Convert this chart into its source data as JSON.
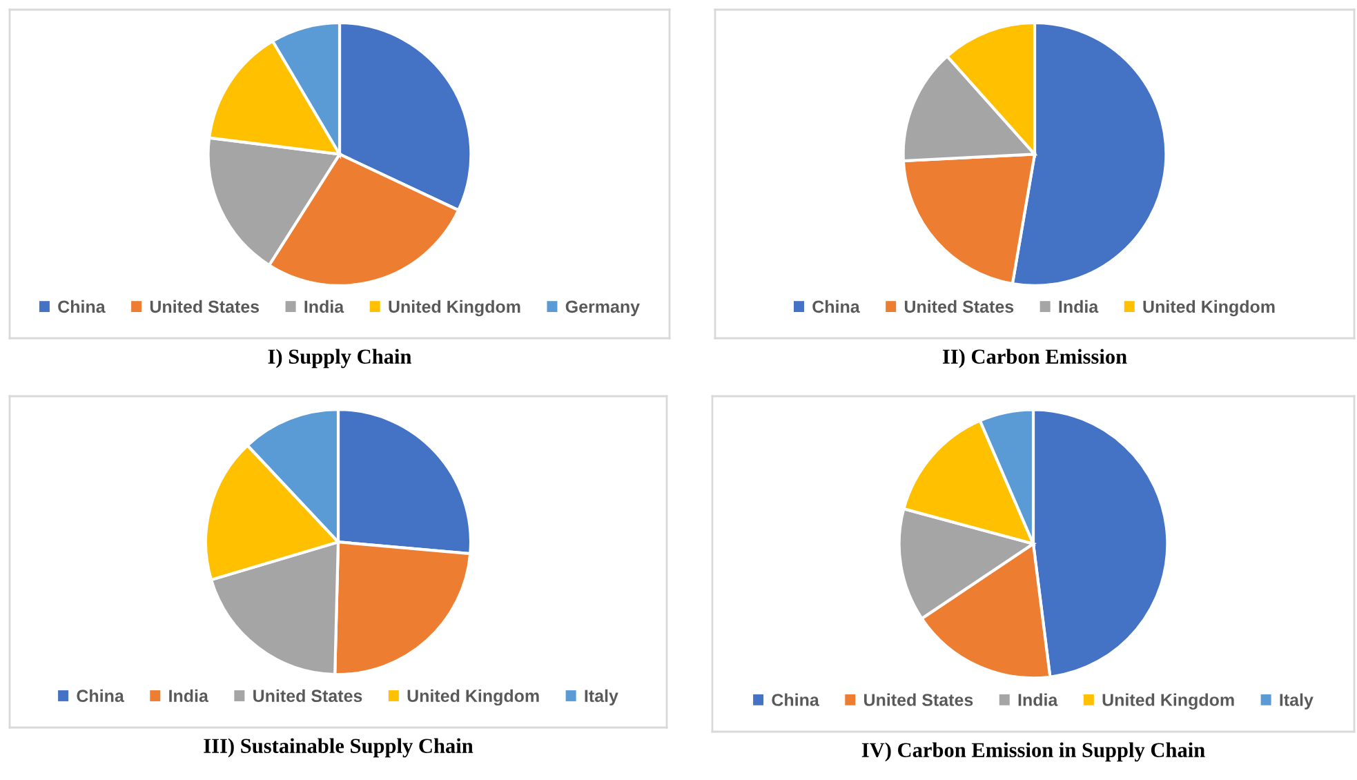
{
  "chart_data": [
    {
      "type": "pie",
      "title": "I) Supply Chain",
      "categories": [
        "China",
        "United States",
        "India",
        "United Kingdom",
        "Germany"
      ],
      "values": [
        32,
        27,
        18,
        14.5,
        8.5
      ],
      "colors": [
        "#4472c4",
        "#ed7d31",
        "#a5a5a5",
        "#ffc000",
        "#5b9bd5"
      ],
      "legend": "bottom"
    },
    {
      "type": "pie",
      "title": "II) Carbon Emission",
      "categories": [
        "China",
        "United States",
        "India",
        "United Kingdom"
      ],
      "values": [
        52.7,
        21.5,
        14.2,
        11.6
      ],
      "colors": [
        "#4472c4",
        "#ed7d31",
        "#a5a5a5",
        "#ffc000"
      ],
      "legend": "bottom"
    },
    {
      "type": "pie",
      "title": "III) Sustainable Supply Chain",
      "categories": [
        "China",
        "India",
        "United States",
        "United Kingdom",
        "Italy"
      ],
      "values": [
        26.4,
        24,
        20,
        17.6,
        12
      ],
      "colors": [
        "#4472c4",
        "#ed7d31",
        "#a5a5a5",
        "#ffc000",
        "#5b9bd5"
      ],
      "legend": "bottom"
    },
    {
      "type": "pie",
      "title": "IV) Carbon Emission in Supply Chain",
      "categories": [
        "China",
        "United States",
        "India",
        "United Kingdom",
        "Italy"
      ],
      "values": [
        48,
        17.6,
        13.6,
        14.3,
        6.5
      ],
      "colors": [
        "#4472c4",
        "#ed7d31",
        "#a5a5a5",
        "#ffc000",
        "#5b9bd5"
      ],
      "legend": "bottom"
    }
  ]
}
